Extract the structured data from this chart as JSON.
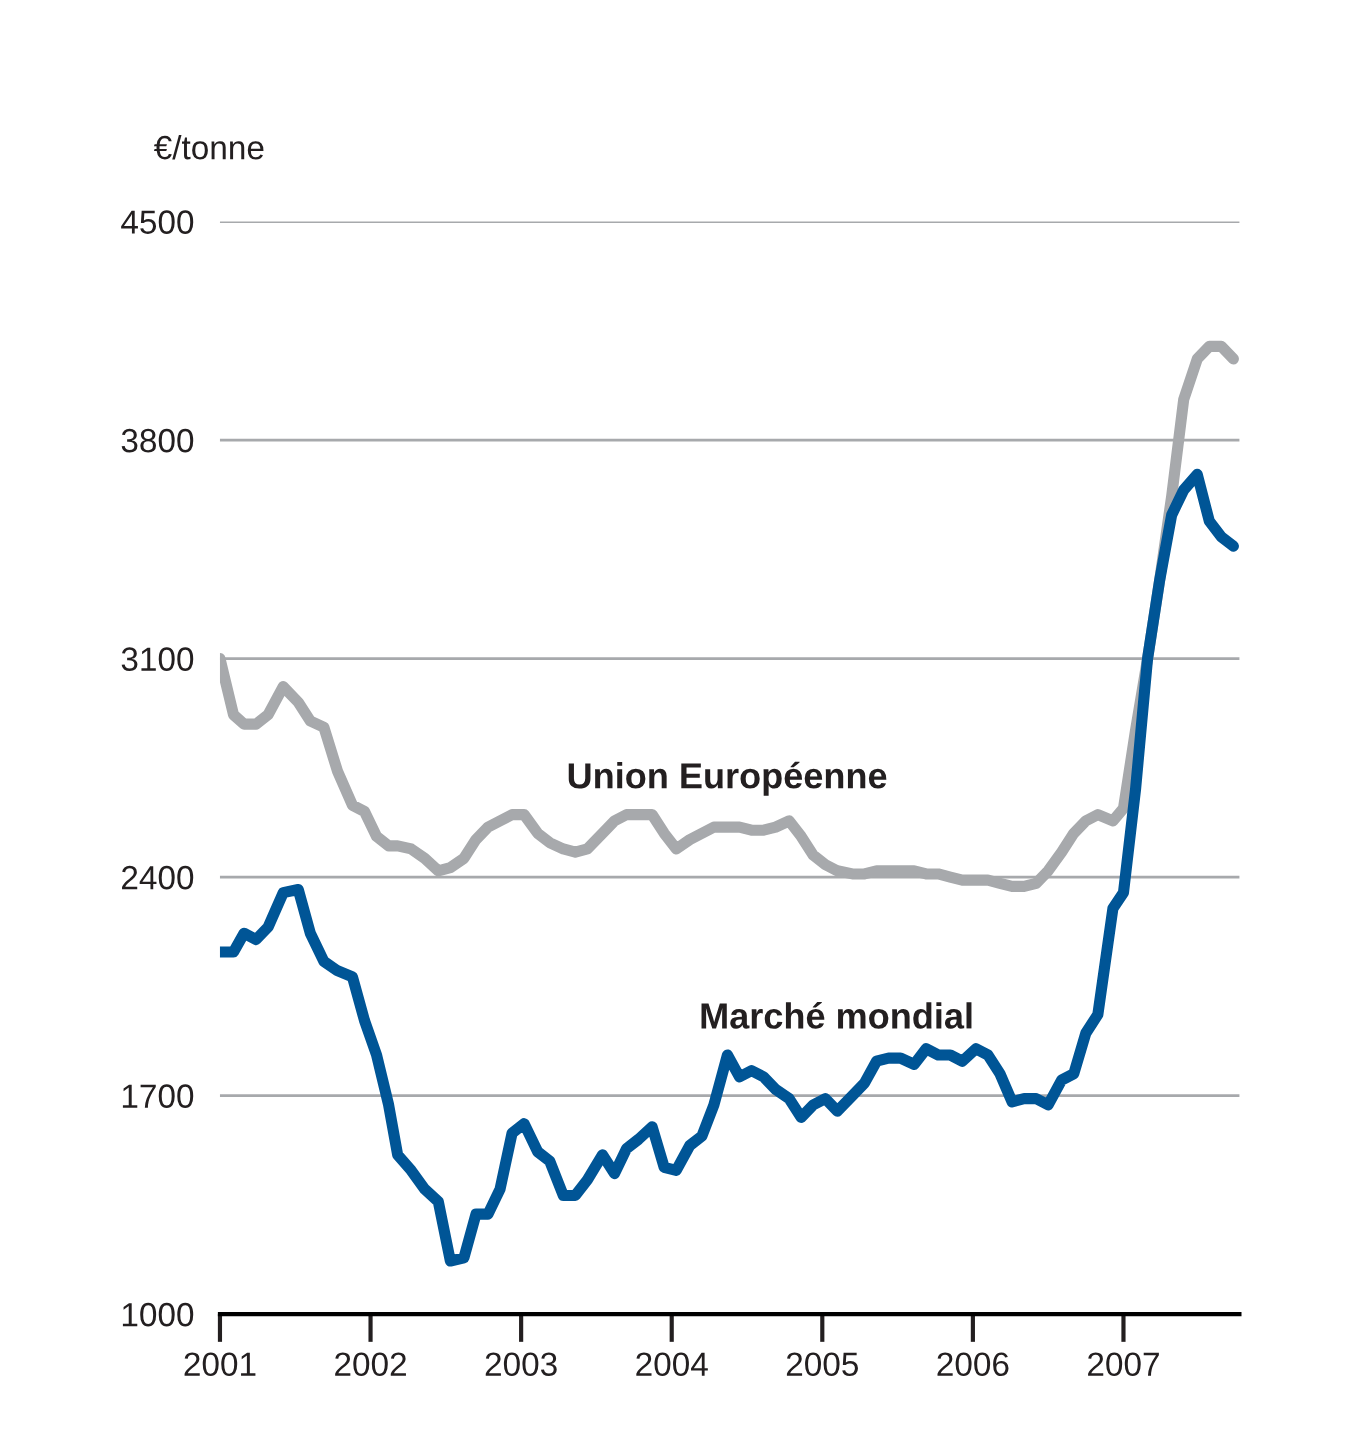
{
  "chart_data": {
    "type": "line",
    "ylabel": "€/tonne",
    "x": [
      2001.0,
      2001.09,
      2001.16,
      2001.24,
      2001.32,
      2001.42,
      2001.52,
      2001.6,
      2001.69,
      2001.78,
      2001.88,
      2001.96,
      2002.04,
      2002.12,
      2002.18,
      2002.27,
      2002.36,
      2002.45,
      2002.53,
      2002.62,
      2002.7,
      2002.78,
      2002.86,
      2002.94,
      2003.02,
      2003.11,
      2003.19,
      2003.28,
      2003.36,
      2003.44,
      2003.54,
      2003.62,
      2003.7,
      2003.78,
      2003.87,
      2003.95,
      2004.03,
      2004.12,
      2004.2,
      2004.28,
      2004.37,
      2004.45,
      2004.53,
      2004.61,
      2004.69,
      2004.78,
      2004.86,
      2004.94,
      2005.02,
      2005.1,
      2005.2,
      2005.28,
      2005.36,
      2005.44,
      2005.52,
      2005.61,
      2005.69,
      2005.77,
      2005.85,
      2005.93,
      2006.02,
      2006.1,
      2006.18,
      2006.26,
      2006.34,
      2006.42,
      2006.5,
      2006.59,
      2006.67,
      2006.75,
      2006.83,
      2006.93,
      2007.0,
      2007.08,
      2007.16,
      2007.24,
      2007.32,
      2007.4,
      2007.49,
      2007.57,
      2007.65,
      2007.73
    ],
    "series": [
      {
        "name": "Union Européenne",
        "color": "#a7a9ac",
        "values": [
          3100,
          2920,
          2890,
          2890,
          2920,
          3010,
          2960,
          2900,
          2880,
          2740,
          2630,
          2610,
          2530,
          2500,
          2500,
          2490,
          2460,
          2420,
          2430,
          2460,
          2520,
          2560,
          2580,
          2600,
          2600,
          2540,
          2510,
          2490,
          2480,
          2490,
          2540,
          2580,
          2600,
          2600,
          2600,
          2540,
          2490,
          2520,
          2540,
          2560,
          2560,
          2560,
          2550,
          2550,
          2560,
          2580,
          2530,
          2470,
          2440,
          2420,
          2410,
          2410,
          2420,
          2420,
          2420,
          2420,
          2410,
          2410,
          2400,
          2390,
          2390,
          2390,
          2380,
          2370,
          2370,
          2380,
          2420,
          2480,
          2540,
          2580,
          2600,
          2580,
          2620,
          2870,
          3100,
          3350,
          3620,
          3930,
          4060,
          4100,
          4100,
          4060
        ]
      },
      {
        "name": "Marché mondial",
        "color": "#005596",
        "values": [
          2160,
          2160,
          2220,
          2200,
          2240,
          2350,
          2360,
          2220,
          2130,
          2100,
          2080,
          1940,
          1830,
          1670,
          1510,
          1460,
          1400,
          1360,
          1170,
          1180,
          1320,
          1320,
          1400,
          1580,
          1610,
          1520,
          1490,
          1380,
          1380,
          1430,
          1510,
          1450,
          1530,
          1560,
          1600,
          1470,
          1460,
          1540,
          1570,
          1670,
          1830,
          1760,
          1780,
          1760,
          1720,
          1690,
          1630,
          1670,
          1690,
          1650,
          1700,
          1740,
          1810,
          1820,
          1820,
          1800,
          1850,
          1830,
          1830,
          1810,
          1850,
          1830,
          1770,
          1680,
          1690,
          1690,
          1670,
          1750,
          1770,
          1900,
          1960,
          2300,
          2350,
          2680,
          3100,
          3350,
          3560,
          3640,
          3690,
          3540,
          3490,
          3460
        ]
      }
    ],
    "xlim": [
      2001,
      2007.77
    ],
    "xticks": [
      2001,
      2002,
      2003,
      2004,
      2005,
      2006,
      2007
    ],
    "ylim": [
      1000,
      4500
    ],
    "yticks": [
      1000,
      1700,
      2400,
      3100,
      3800,
      4500
    ],
    "grid": "y",
    "legend": false,
    "marker": "none",
    "line_style": "solid"
  }
}
